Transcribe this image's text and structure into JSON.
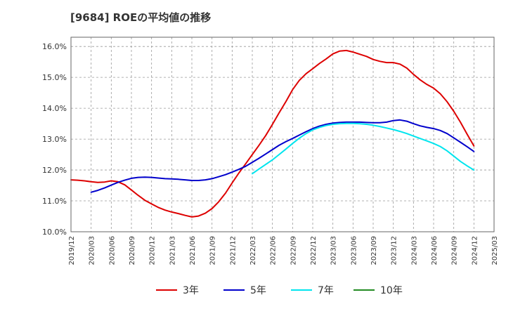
{
  "chart_data": {
    "type": "line",
    "title": "[9684]  ROEの平均値の推移",
    "xlabel": "",
    "ylabel": "",
    "ylim": [
      10.0,
      16.3
    ],
    "yticks": [
      10.0,
      11.0,
      12.0,
      13.0,
      14.0,
      15.0,
      16.0
    ],
    "ytick_labels": [
      "10.0%",
      "11.0%",
      "12.0%",
      "13.0%",
      "14.0%",
      "15.0%",
      "16.0%"
    ],
    "categories": [
      "2019/12",
      "2020/03",
      "2020/06",
      "2020/09",
      "2020/12",
      "2021/03",
      "2021/06",
      "2021/09",
      "2021/12",
      "2022/03",
      "2022/06",
      "2022/09",
      "2022/12",
      "2023/03",
      "2023/06",
      "2023/09",
      "2023/12",
      "2024/03",
      "2024/06",
      "2024/09",
      "2024/12",
      "2025/03"
    ],
    "grid": true,
    "legend_position": "bottom",
    "series": [
      {
        "name": "3年",
        "color": "#dd0000",
        "points": [
          [
            0,
            11.68
          ],
          [
            0.33,
            11.67
          ],
          [
            0.67,
            11.65
          ],
          [
            1,
            11.62
          ],
          [
            1.33,
            11.6
          ],
          [
            1.67,
            11.61
          ],
          [
            2,
            11.65
          ],
          [
            2.33,
            11.62
          ],
          [
            2.67,
            11.52
          ],
          [
            3,
            11.35
          ],
          [
            3.33,
            11.18
          ],
          [
            3.67,
            11.02
          ],
          [
            4,
            10.9
          ],
          [
            4.33,
            10.79
          ],
          [
            4.67,
            10.7
          ],
          [
            5,
            10.64
          ],
          [
            5.33,
            10.59
          ],
          [
            5.67,
            10.53
          ],
          [
            6,
            10.48
          ],
          [
            6.33,
            10.51
          ],
          [
            6.67,
            10.6
          ],
          [
            7,
            10.75
          ],
          [
            7.33,
            10.97
          ],
          [
            7.67,
            11.25
          ],
          [
            8,
            11.58
          ],
          [
            8.33,
            11.9
          ],
          [
            8.67,
            12.2
          ],
          [
            9,
            12.5
          ],
          [
            9.33,
            12.8
          ],
          [
            9.67,
            13.12
          ],
          [
            10,
            13.48
          ],
          [
            10.33,
            13.85
          ],
          [
            10.67,
            14.22
          ],
          [
            11,
            14.6
          ],
          [
            11.33,
            14.9
          ],
          [
            11.67,
            15.12
          ],
          [
            12,
            15.28
          ],
          [
            12.33,
            15.45
          ],
          [
            12.67,
            15.6
          ],
          [
            13,
            15.76
          ],
          [
            13.33,
            15.85
          ],
          [
            13.67,
            15.87
          ],
          [
            14,
            15.82
          ],
          [
            14.33,
            15.75
          ],
          [
            14.67,
            15.68
          ],
          [
            15,
            15.58
          ],
          [
            15.33,
            15.52
          ],
          [
            15.67,
            15.48
          ],
          [
            16,
            15.48
          ],
          [
            16.33,
            15.43
          ],
          [
            16.67,
            15.3
          ],
          [
            17,
            15.1
          ],
          [
            17.33,
            14.92
          ],
          [
            17.67,
            14.77
          ],
          [
            18,
            14.65
          ],
          [
            18.33,
            14.47
          ],
          [
            18.67,
            14.21
          ],
          [
            19,
            13.9
          ],
          [
            19.33,
            13.55
          ],
          [
            19.67,
            13.15
          ],
          [
            20,
            12.78
          ]
        ]
      },
      {
        "name": "5年",
        "color": "#0000cc",
        "points": [
          [
            1,
            11.28
          ],
          [
            1.33,
            11.34
          ],
          [
            1.67,
            11.42
          ],
          [
            2,
            11.51
          ],
          [
            2.33,
            11.6
          ],
          [
            2.67,
            11.67
          ],
          [
            3,
            11.73
          ],
          [
            3.33,
            11.76
          ],
          [
            3.67,
            11.77
          ],
          [
            4,
            11.76
          ],
          [
            4.33,
            11.74
          ],
          [
            4.67,
            11.72
          ],
          [
            5,
            11.71
          ],
          [
            5.33,
            11.7
          ],
          [
            5.67,
            11.68
          ],
          [
            6,
            11.66
          ],
          [
            6.33,
            11.66
          ],
          [
            6.67,
            11.68
          ],
          [
            7,
            11.72
          ],
          [
            7.33,
            11.78
          ],
          [
            7.67,
            11.85
          ],
          [
            8,
            11.93
          ],
          [
            8.33,
            12.02
          ],
          [
            8.67,
            12.12
          ],
          [
            9,
            12.25
          ],
          [
            9.33,
            12.38
          ],
          [
            9.67,
            12.52
          ],
          [
            10,
            12.66
          ],
          [
            10.33,
            12.8
          ],
          [
            10.67,
            12.92
          ],
          [
            11,
            13.02
          ],
          [
            11.33,
            13.13
          ],
          [
            11.67,
            13.24
          ],
          [
            12,
            13.34
          ],
          [
            12.33,
            13.42
          ],
          [
            12.67,
            13.48
          ],
          [
            13,
            13.52
          ],
          [
            13.33,
            13.54
          ],
          [
            13.67,
            13.55
          ],
          [
            14,
            13.55
          ],
          [
            14.33,
            13.55
          ],
          [
            14.67,
            13.54
          ],
          [
            15,
            13.53
          ],
          [
            15.33,
            13.53
          ],
          [
            15.67,
            13.55
          ],
          [
            16,
            13.6
          ],
          [
            16.33,
            13.62
          ],
          [
            16.67,
            13.58
          ],
          [
            17,
            13.5
          ],
          [
            17.33,
            13.43
          ],
          [
            17.67,
            13.38
          ],
          [
            18,
            13.34
          ],
          [
            18.33,
            13.28
          ],
          [
            18.67,
            13.18
          ],
          [
            19,
            13.04
          ],
          [
            19.33,
            12.9
          ],
          [
            19.67,
            12.75
          ],
          [
            20,
            12.6
          ]
        ]
      },
      {
        "name": "7年",
        "color": "#00e5ee",
        "points": [
          [
            9,
            11.88
          ],
          [
            9.33,
            12.03
          ],
          [
            9.67,
            12.18
          ],
          [
            10,
            12.33
          ],
          [
            10.33,
            12.5
          ],
          [
            10.67,
            12.68
          ],
          [
            11,
            12.86
          ],
          [
            11.33,
            13.03
          ],
          [
            11.67,
            13.18
          ],
          [
            12,
            13.3
          ],
          [
            12.33,
            13.38
          ],
          [
            12.67,
            13.44
          ],
          [
            13,
            13.48
          ],
          [
            13.33,
            13.5
          ],
          [
            13.67,
            13.51
          ],
          [
            14,
            13.51
          ],
          [
            14.33,
            13.5
          ],
          [
            14.67,
            13.48
          ],
          [
            15,
            13.45
          ],
          [
            15.33,
            13.41
          ],
          [
            15.67,
            13.36
          ],
          [
            16,
            13.31
          ],
          [
            16.33,
            13.25
          ],
          [
            16.67,
            13.18
          ],
          [
            17,
            13.1
          ],
          [
            17.33,
            13.02
          ],
          [
            17.67,
            12.94
          ],
          [
            18,
            12.86
          ],
          [
            18.33,
            12.76
          ],
          [
            18.67,
            12.62
          ],
          [
            19,
            12.45
          ],
          [
            19.33,
            12.28
          ],
          [
            19.67,
            12.13
          ],
          [
            20,
            12.0
          ]
        ]
      },
      {
        "name": "10年",
        "color": "#228b22",
        "points": []
      }
    ]
  }
}
